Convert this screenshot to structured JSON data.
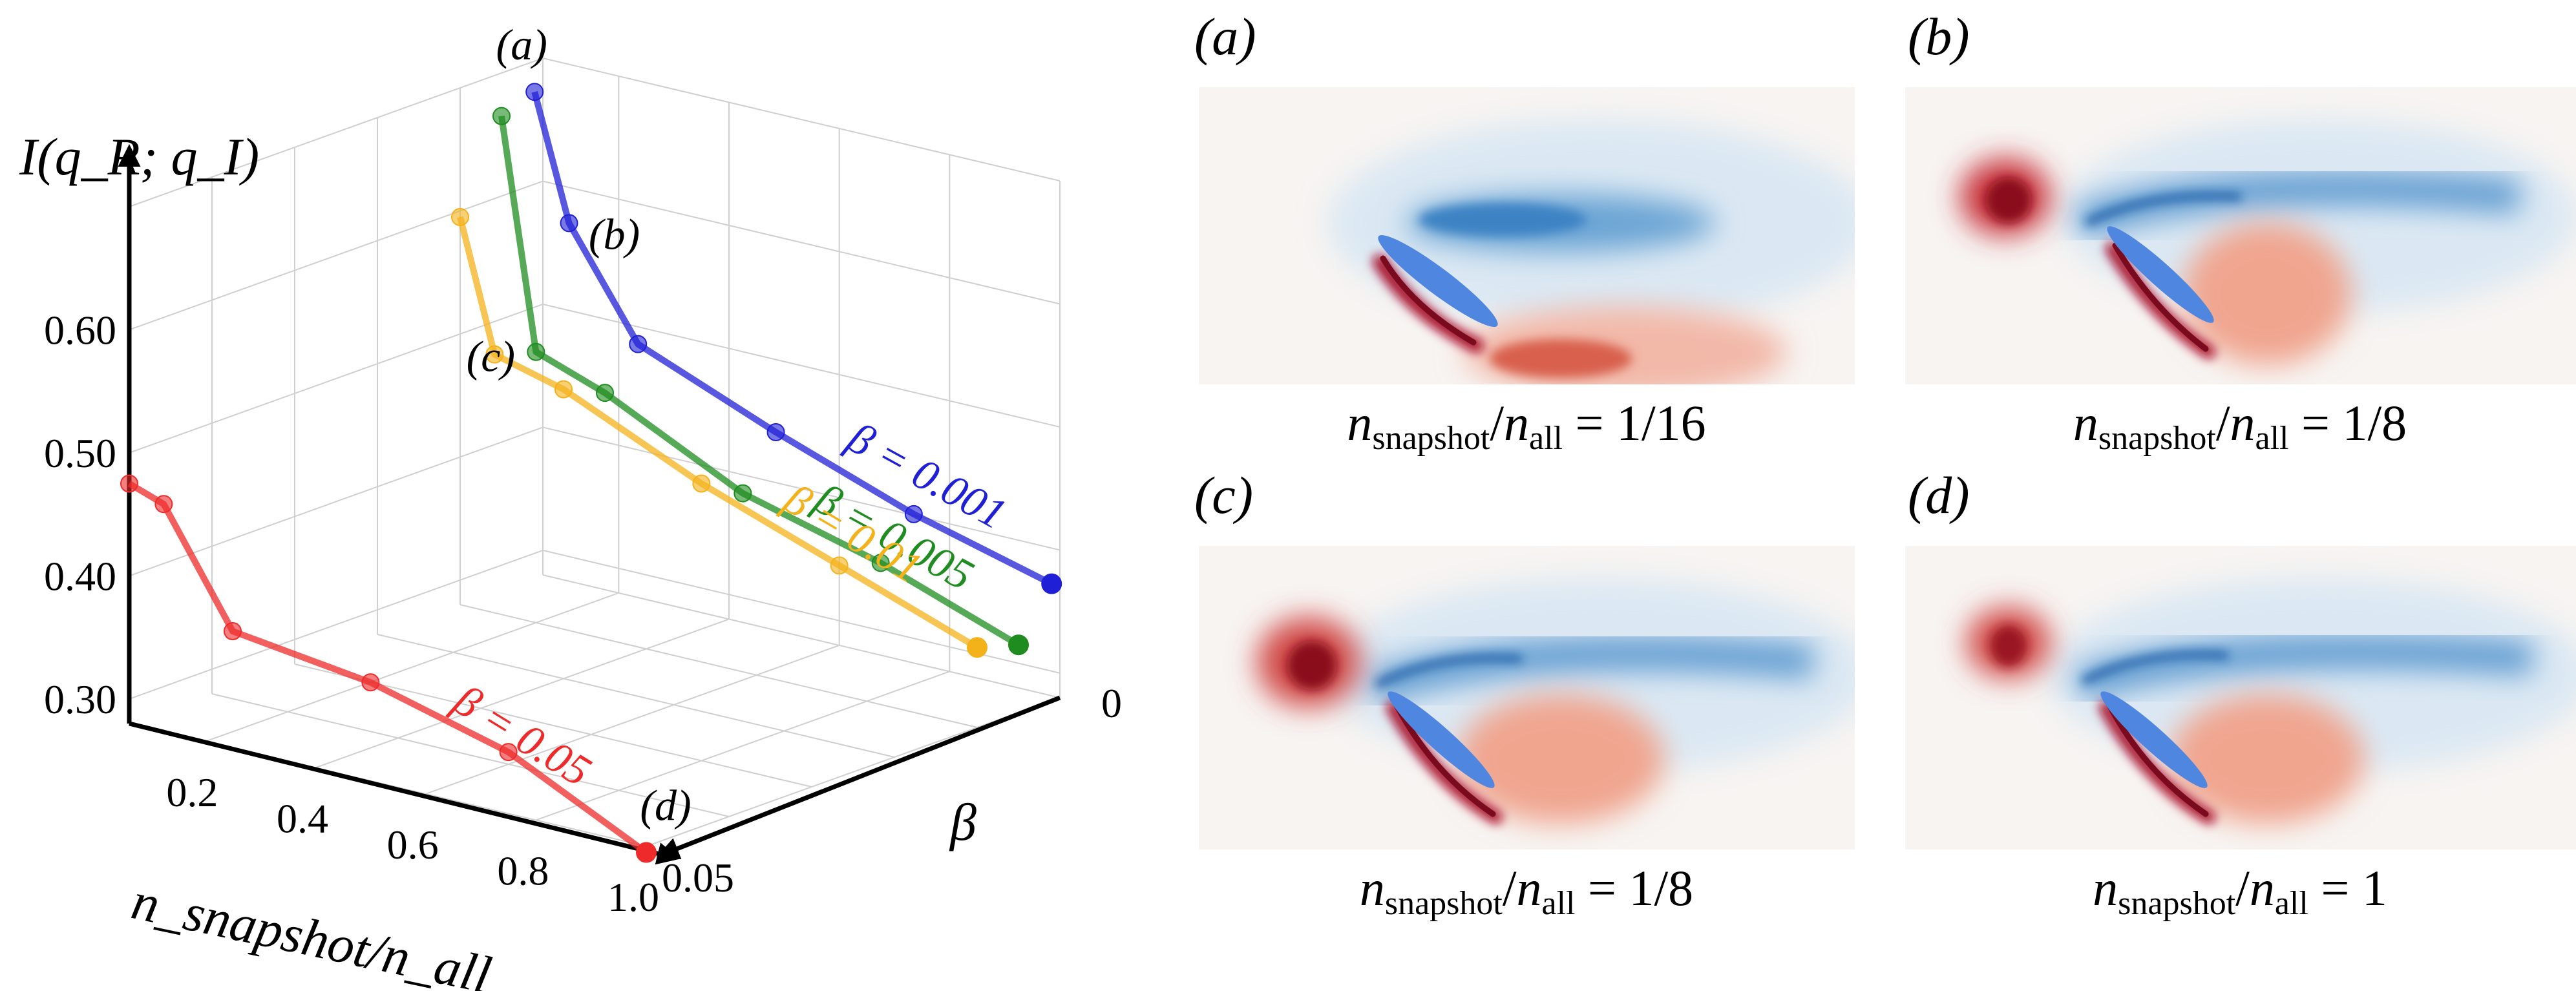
{
  "chart_data": [
    {
      "type": "line",
      "z_label": "I(q_R; q_I)",
      "x_label": "n_snapshot/n_all",
      "y_label": "β",
      "x_ticks": [
        "0.2",
        "0.4",
        "0.6",
        "0.8",
        "1.0"
      ],
      "y_ticks": [
        "0",
        "0.05"
      ],
      "z_ticks": [
        "0.30",
        "0.40",
        "0.50",
        "0.60"
      ],
      "xlim": [
        0.0625,
        1.0
      ],
      "ylim": [
        0,
        0.05
      ],
      "zlim": [
        0.28,
        0.7
      ],
      "grid": true,
      "x": [
        0.0625,
        0.125,
        0.25,
        0.5,
        0.75,
        1.0
      ],
      "series": [
        {
          "name": "β = 0.001",
          "beta": 0.001,
          "color": "#1f1fd6",
          "values": [
            0.675,
            0.575,
            0.49,
            0.445,
            0.405,
            0.375
          ]
        },
        {
          "name": "β = 0.005",
          "beta": 0.005,
          "color": "#1e8c1e",
          "values": [
            0.665,
            0.48,
            0.46,
            0.405,
            0.375,
            0.335
          ]
        },
        {
          "name": "β = 0.01",
          "beta": 0.01,
          "color": "#f4b21a",
          "values": [
            0.595,
            0.49,
            0.475,
            0.425,
            0.385,
            0.345
          ]
        },
        {
          "name": "β = 0.05",
          "beta": 0.05,
          "color": "#ee2a2a",
          "values": [
            0.475,
            0.465,
            0.375,
            0.36,
            0.33,
            0.275
          ]
        }
      ],
      "point_labels": [
        {
          "text": "(a)",
          "series": 0,
          "index": 0
        },
        {
          "text": "(b)",
          "series": 0,
          "index": 1
        },
        {
          "text": "(c)",
          "series": 1,
          "index": 1
        },
        {
          "text": "(d)",
          "series": 3,
          "index": 5
        }
      ]
    }
  ],
  "panels": [
    {
      "label": "(a)",
      "caption_value": "1/16"
    },
    {
      "label": "(b)",
      "caption_value": "1/8"
    },
    {
      "label": "(c)",
      "caption_value": "1/8"
    },
    {
      "label": "(d)",
      "caption_value": "1"
    }
  ],
  "caption_prefix_n": "n",
  "caption_sub_num": "snapshot",
  "caption_sub_den": "all",
  "caption_eq": " = ",
  "colors": {
    "blue_field": "#1f5fa8",
    "red_field": "#b0102a",
    "airfoil": "#4f86e0"
  }
}
